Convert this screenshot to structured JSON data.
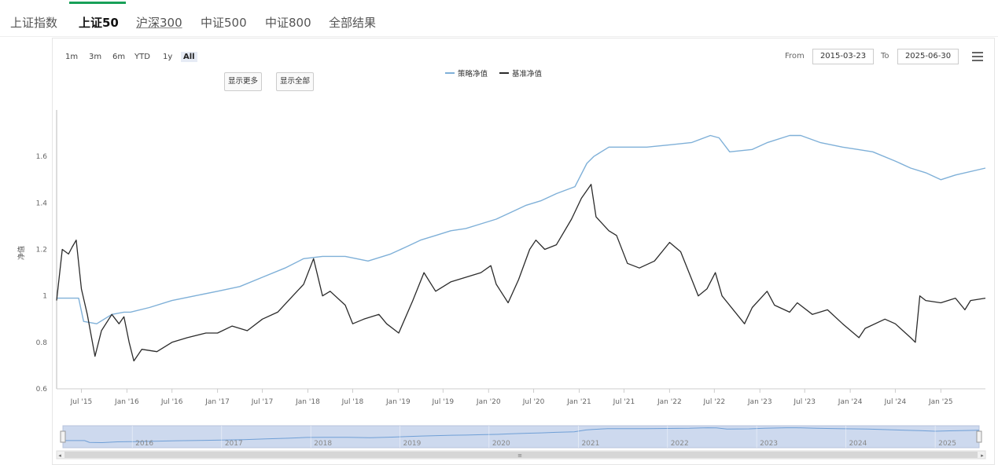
{
  "tabs": [
    {
      "label": "上证指数"
    },
    {
      "label": "上证50"
    },
    {
      "label": "沪深300"
    },
    {
      "label": "中证500"
    },
    {
      "label": "中证800"
    },
    {
      "label": "全部结果"
    }
  ],
  "range_selector": {
    "buttons": [
      "1m",
      "3m",
      "6m",
      "YTD",
      "1y",
      "All"
    ],
    "selected": "All",
    "from_label": "From",
    "from_value": "2015-03-23",
    "to_label": "To",
    "to_value": "2025-06-30"
  },
  "controls": {
    "show_more": "显示更多",
    "show_all": "显示全部"
  },
  "colors": {
    "strategy": "#7fb0d8",
    "benchmark": "#2b2b2b",
    "tab_accent": "#18a058",
    "navigator_fill": "#cdd9ee"
  },
  "chart_data": {
    "type": "line",
    "title": "",
    "ylabel": "净值",
    "ylim": [
      0.6,
      1.8
    ],
    "xlim": [
      "2015-03-23",
      "2025-06-30"
    ],
    "y_ticks": [
      "0.6",
      "0.8",
      "1",
      "1.2",
      "1.4",
      "1.6"
    ],
    "x_ticks": [
      "Jul '15",
      "Jan '16",
      "Jul '16",
      "Jan '17",
      "Jul '17",
      "Jan '18",
      "Jul '18",
      "Jan '19",
      "Jul '19",
      "Jan '20",
      "Jul '20",
      "Jan '21",
      "Jul '21",
      "Jan '22",
      "Jul '22",
      "Jan '23",
      "Jul '23",
      "Jan '24",
      "Jul '24",
      "Jan '25"
    ],
    "legend_position": "top-center",
    "navigator_labels": [
      "2016",
      "2017",
      "2018",
      "2019",
      "2020",
      "2021",
      "2022",
      "2023",
      "2024",
      "2025"
    ],
    "series": [
      {
        "name": "策略净值",
        "x": [
          "2015-03-23",
          "2015-06-01",
          "2015-06-20",
          "2015-07-10",
          "2015-09-01",
          "2015-11-01",
          "2015-12-20",
          "2016-01-15",
          "2016-04-01",
          "2016-07-01",
          "2016-10-01",
          "2017-01-01",
          "2017-04-01",
          "2017-07-01",
          "2017-10-01",
          "2017-12-15",
          "2018-03-01",
          "2018-06-01",
          "2018-09-01",
          "2018-12-01",
          "2019-02-01",
          "2019-04-01",
          "2019-06-01",
          "2019-08-01",
          "2019-10-01",
          "2019-12-01",
          "2020-02-01",
          "2020-04-01",
          "2020-06-01",
          "2020-08-01",
          "2020-10-01",
          "2020-12-15",
          "2021-02-01",
          "2021-03-01",
          "2021-05-01",
          "2021-07-01",
          "2021-10-01",
          "2022-01-01",
          "2022-04-01",
          "2022-06-15",
          "2022-07-20",
          "2022-09-01",
          "2022-12-01",
          "2023-02-01",
          "2023-05-01",
          "2023-06-15",
          "2023-09-01",
          "2023-12-01",
          "2024-02-01",
          "2024-04-01",
          "2024-07-01",
          "2024-09-01",
          "2024-11-01",
          "2025-01-01",
          "2025-03-01",
          "2025-06-30"
        ],
        "y": [
          0.99,
          0.99,
          0.99,
          0.89,
          0.88,
          0.92,
          0.93,
          0.93,
          0.95,
          0.98,
          1.0,
          1.02,
          1.04,
          1.08,
          1.12,
          1.16,
          1.17,
          1.17,
          1.15,
          1.18,
          1.21,
          1.24,
          1.26,
          1.28,
          1.29,
          1.31,
          1.33,
          1.36,
          1.39,
          1.41,
          1.44,
          1.47,
          1.57,
          1.6,
          1.64,
          1.64,
          1.64,
          1.65,
          1.66,
          1.69,
          1.68,
          1.62,
          1.63,
          1.66,
          1.69,
          1.69,
          1.66,
          1.64,
          1.63,
          1.62,
          1.58,
          1.55,
          1.53,
          1.5,
          1.52,
          1.55
        ]
      },
      {
        "name": "基准净值",
        "x": [
          "2015-03-23",
          "2015-04-15",
          "2015-05-10",
          "2015-05-25",
          "2015-06-10",
          "2015-07-01",
          "2015-07-25",
          "2015-08-25",
          "2015-09-20",
          "2015-11-01",
          "2015-11-30",
          "2015-12-20",
          "2016-01-10",
          "2016-01-29",
          "2016-03-01",
          "2016-05-01",
          "2016-07-01",
          "2016-09-01",
          "2016-11-15",
          "2017-01-01",
          "2017-03-01",
          "2017-05-01",
          "2017-07-01",
          "2017-09-01",
          "2017-11-01",
          "2017-12-15",
          "2018-01-24",
          "2018-03-01",
          "2018-04-01",
          "2018-06-01",
          "2018-07-01",
          "2018-08-15",
          "2018-10-15",
          "2018-11-15",
          "2019-01-03",
          "2019-03-01",
          "2019-04-15",
          "2019-06-01",
          "2019-08-01",
          "2019-10-01",
          "2019-12-01",
          "2020-01-10",
          "2020-02-01",
          "2020-03-20",
          "2020-05-01",
          "2020-06-15",
          "2020-07-10",
          "2020-08-15",
          "2020-10-01",
          "2020-12-01",
          "2021-01-10",
          "2021-02-18",
          "2021-03-10",
          "2021-05-01",
          "2021-06-01",
          "2021-07-15",
          "2021-09-01",
          "2021-11-01",
          "2022-01-01",
          "2022-02-15",
          "2022-04-01",
          "2022-04-27",
          "2022-06-01",
          "2022-07-05",
          "2022-08-01",
          "2022-10-31",
          "2022-12-01",
          "2023-01-30",
          "2023-03-01",
          "2023-05-01",
          "2023-06-01",
          "2023-08-01",
          "2023-10-01",
          "2023-12-01",
          "2024-02-05",
          "2024-03-01",
          "2024-05-20",
          "2024-07-01",
          "2024-09-01",
          "2024-09-20",
          "2024-10-08",
          "2024-11-01",
          "2025-01-01",
          "2025-03-01",
          "2025-04-08",
          "2025-05-01",
          "2025-06-30"
        ],
        "y": [
          0.98,
          1.2,
          1.18,
          1.21,
          1.24,
          1.03,
          0.92,
          0.74,
          0.85,
          0.92,
          0.88,
          0.91,
          0.8,
          0.72,
          0.77,
          0.76,
          0.8,
          0.82,
          0.84,
          0.84,
          0.87,
          0.85,
          0.9,
          0.93,
          1.0,
          1.05,
          1.16,
          1.0,
          1.02,
          0.96,
          0.88,
          0.9,
          0.92,
          0.88,
          0.84,
          0.98,
          1.1,
          1.02,
          1.06,
          1.08,
          1.1,
          1.13,
          1.05,
          0.97,
          1.07,
          1.2,
          1.24,
          1.2,
          1.22,
          1.33,
          1.42,
          1.48,
          1.34,
          1.28,
          1.26,
          1.14,
          1.12,
          1.15,
          1.23,
          1.19,
          1.07,
          1.0,
          1.03,
          1.1,
          1.0,
          0.88,
          0.95,
          1.02,
          0.96,
          0.93,
          0.97,
          0.92,
          0.94,
          0.88,
          0.82,
          0.86,
          0.9,
          0.88,
          0.82,
          0.8,
          1.0,
          0.98,
          0.97,
          0.99,
          0.94,
          0.98,
          0.99
        ]
      }
    ]
  }
}
